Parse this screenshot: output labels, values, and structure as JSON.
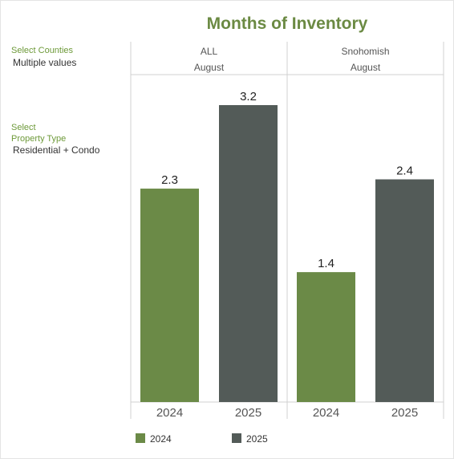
{
  "title": "Months of Inventory",
  "filters": {
    "counties": {
      "label": "Select Counties",
      "value": "Multiple values"
    },
    "property_type": {
      "label_line1": "Select",
      "label_line2": "Property Type",
      "value": "Residential + Condo"
    }
  },
  "colors": {
    "y2024": "#6b8a47",
    "y2025": "#535b58",
    "title": "#6b8a43",
    "grid": "#d0d0d0"
  },
  "chart_data": {
    "type": "bar",
    "title": "Months of Inventory",
    "ylim": [
      0,
      3.2
    ],
    "panels": [
      {
        "county": "ALL",
        "month": "August",
        "categories": [
          "2024",
          "2025"
        ],
        "values": [
          2.3,
          3.2
        ],
        "labels": [
          "2.3",
          "3.2"
        ]
      },
      {
        "county": "Snohomish",
        "month": "August",
        "categories": [
          "2024",
          "2025"
        ],
        "values": [
          1.4,
          2.4
        ],
        "labels": [
          "1.4",
          "2.4"
        ]
      }
    ],
    "legend": [
      "2024",
      "2025"
    ]
  }
}
